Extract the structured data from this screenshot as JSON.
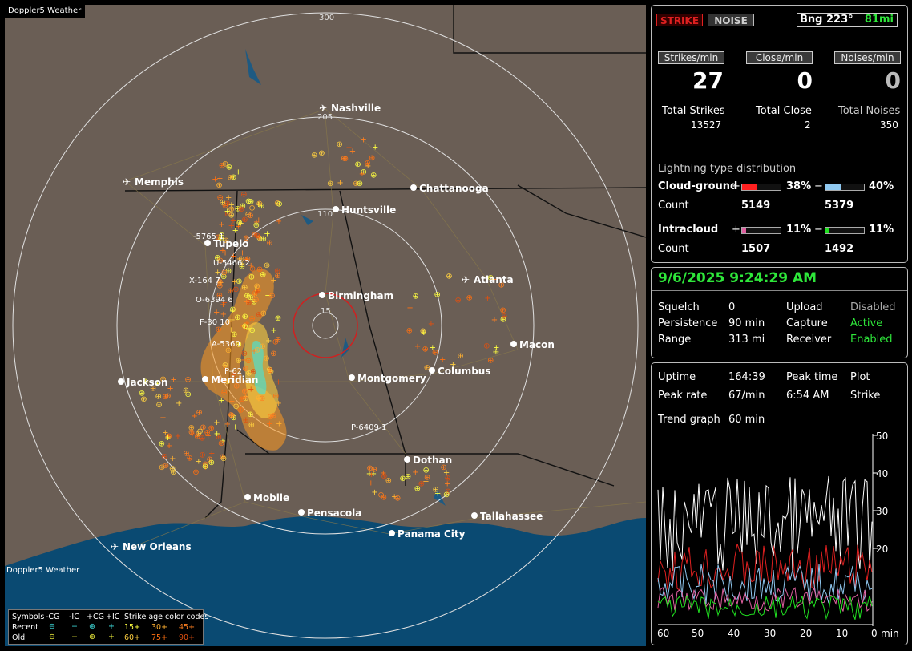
{
  "app_title": "Doppler5 Weather",
  "watermark": "Doppler5 Weather",
  "colors": {
    "strike_red": "#e02020",
    "noise_gray": "#cfcfcf",
    "accent_green": "#2ee63a",
    "cg_pos": "#ff2020",
    "cg_neg": "#8fc8f0",
    "ic_pos": "#e060a0",
    "ic_neg": "#20e020"
  },
  "map": {
    "range_labels": [
      "300",
      "205",
      "110",
      "15"
    ],
    "cities": [
      "Nashville",
      "Memphis",
      "Chattanooga",
      "Huntsville",
      "Tupelo",
      "Birmingham",
      "Atlanta",
      "Macon",
      "Jackson",
      "Meridian",
      "Montgomery",
      "Columbus",
      "Dothan",
      "Mobile",
      "Pensacola",
      "Panama City",
      "Tallahassee",
      "New Orleans"
    ],
    "airport_icon": "airplane-icon",
    "markers": [
      "I-5765 1",
      "U-5466 2",
      "X-164 7",
      "O-6394 6",
      "F-30 10",
      "A-5360",
      "P-62",
      "P-6409 1"
    ],
    "legend": {
      "header": [
        "Symbols",
        "-CG",
        "-IC",
        "+CG",
        "+IC",
        "Strike age color codes"
      ],
      "recent_label": "Recent",
      "old_label": "Old",
      "recent_ages": [
        "15+",
        "30+",
        "45+"
      ],
      "old_ages": [
        "60+",
        "75+",
        "90+"
      ],
      "age_colors": [
        "#ffff40",
        "#ffb030",
        "#ff8020",
        "#ffd040",
        "#ff7010",
        "#e05010"
      ]
    }
  },
  "header": {
    "strike_label": "STRIKE",
    "noise_label": "NOISE",
    "bearing": "Bng 223°",
    "distance": "81mi"
  },
  "stats": {
    "strikes_per_min_label": "Strikes/min",
    "strikes_per_min": "27",
    "close_per_min_label": "Close/min",
    "close_per_min": "0",
    "noises_per_min_label": "Noises/min",
    "noises_per_min": "0",
    "total_strikes_label": "Total Strikes",
    "total_strikes": "13527",
    "total_close_label": "Total Close",
    "total_close": "2",
    "total_noises_label": "Total Noises",
    "total_noises": "350"
  },
  "distribution": {
    "title": "Lightning type distribution",
    "cg_label": "Cloud-ground",
    "ic_label": "Intracloud",
    "count_label": "Count",
    "plus": "+",
    "minus": "−",
    "cg_pos_pct": "38%",
    "cg_neg_pct": "40%",
    "cg_pos_frac": 0.38,
    "cg_neg_frac": 0.4,
    "cg_pos_count": "5149",
    "cg_neg_count": "5379",
    "ic_pos_pct": "11%",
    "ic_neg_pct": "11%",
    "ic_pos_frac": 0.11,
    "ic_neg_frac": 0.11,
    "ic_pos_count": "1507",
    "ic_neg_count": "1492"
  },
  "status": {
    "datetime": "9/6/2025 9:24:29 AM",
    "squelch_label": "Squelch",
    "squelch": "0",
    "upload_label": "Upload",
    "upload": "Disabled",
    "persistence_label": "Persistence",
    "persistence": "90 min",
    "capture_label": "Capture",
    "capture": "Active",
    "range_label": "Range",
    "range": "313 mi",
    "receiver_label": "Receiver",
    "receiver": "Enabled"
  },
  "trend": {
    "uptime_label": "Uptime",
    "uptime": "164:39",
    "peak_time_label": "Peak time",
    "peak_time": "6:54 AM",
    "plot_label": "Plot",
    "peak_rate_label": "Peak rate",
    "peak_rate": "67/min",
    "plot": "Strike",
    "trend_graph_label": "Trend graph",
    "trend_graph_value": "60 min",
    "y_ticks": [
      "50",
      "40",
      "30",
      "20"
    ],
    "x_ticks": [
      "60",
      "50",
      "40",
      "30",
      "20",
      "10",
      "0"
    ],
    "x_unit": "min"
  }
}
